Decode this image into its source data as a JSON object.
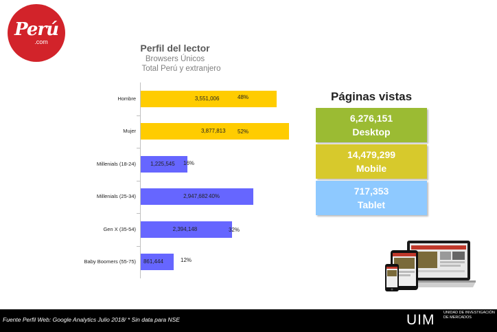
{
  "logo": {
    "main": "Perú",
    "sub": ".com"
  },
  "chart": {
    "title": "Perfil del lector",
    "subtitle1": "Browsers Únicos",
    "subtitle2": "Total Perú y extranjero"
  },
  "chart_data": {
    "type": "bar",
    "orientation": "horizontal",
    "categories": [
      "Hombre",
      "Mujer",
      "Millenials (18-24)",
      "Millenials (25-34)",
      "Gen X (35-54)",
      "Baby Boomers (55-75)"
    ],
    "values": [
      3551006,
      3877813,
      1225545,
      2947682,
      2394148,
      861444
    ],
    "value_labels": [
      "3,551,006",
      "3,877,813",
      "1,225,545",
      "2,947,682",
      "2,394,148",
      "861,444"
    ],
    "percent_labels": [
      "48%",
      "52%",
      "16%",
      "40%",
      "32%",
      "12%"
    ],
    "bar_colors": [
      "#ffcc00",
      "#ffcc00",
      "#6666ff",
      "#6666ff",
      "#6666ff",
      "#6666ff"
    ],
    "xlim": [
      0,
      4400000
    ],
    "grid": false,
    "legend": "none"
  },
  "page_views": {
    "title": "Páginas vistas",
    "items": [
      {
        "value": "6,276,151",
        "label": "Desktop",
        "color": "#9bbb33"
      },
      {
        "value": "14,479,299",
        "label": "Mobile",
        "color": "#d7c92c"
      },
      {
        "value": "717,353",
        "label": "Tablet",
        "color": "#8ec9ff"
      }
    ]
  },
  "footer": {
    "note": "Fuente Perfil Web: Google Analytics Julio 2018/  * Sin data para NSE",
    "brand": "UIM",
    "brand_text": "UNIDAD DE INVESTIGACIÓN DE MERCADOS"
  }
}
